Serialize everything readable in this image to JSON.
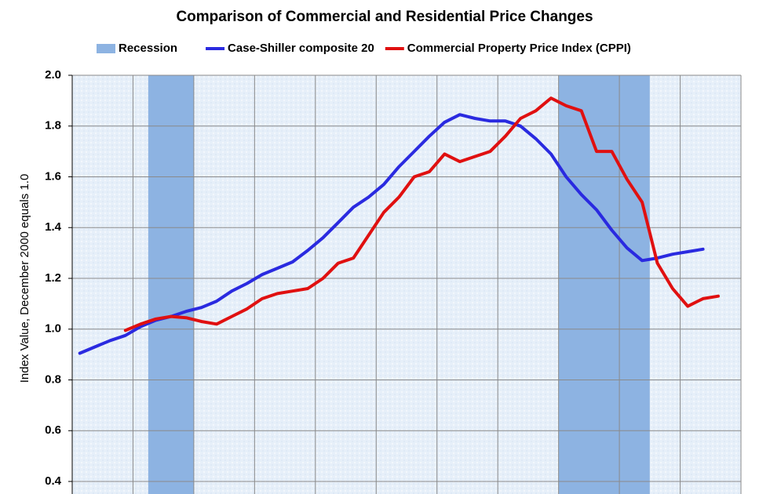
{
  "chart_data": {
    "type": "line",
    "title": "Comparison of Commercial and Residential Price Changes",
    "y_label": "Index Value, December 2000 equals 1.0",
    "categories": [
      null,
      null,
      null,
      null,
      null,
      null,
      null,
      null,
      null,
      null,
      null,
      null,
      null,
      null,
      null,
      null,
      null,
      null,
      null,
      null,
      null,
      null,
      null,
      null,
      null,
      null,
      null,
      null,
      null,
      null,
      null,
      null,
      null,
      null,
      null,
      null,
      null,
      null,
      null,
      null,
      null,
      null,
      null,
      null
    ],
    "recession": {
      "name": "Recession",
      "color": "#8db3e2",
      "periods": [
        [
          5,
          7
        ],
        [
          32,
          37
        ]
      ]
    },
    "series": [
      {
        "name": "Case-Shiller composite 20",
        "color": "#2a2ae0",
        "values": [
          0.905,
          0.93,
          0.955,
          0.975,
          1.01,
          1.035,
          1.05,
          1.07,
          1.085,
          1.11,
          1.15,
          1.18,
          1.215,
          1.24,
          1.265,
          1.31,
          1.36,
          1.42,
          1.48,
          1.52,
          1.57,
          1.64,
          1.7,
          1.76,
          1.815,
          1.845,
          1.83,
          1.82,
          1.82,
          1.8,
          1.75,
          1.69,
          1.6,
          1.53,
          1.47,
          1.39,
          1.32,
          1.27,
          1.28,
          1.295,
          1.305,
          1.315,
          null,
          null
        ]
      },
      {
        "name": "Commercial Property Price Index (CPPI)",
        "color": "#e01010",
        "values": [
          null,
          null,
          null,
          0.995,
          1.02,
          1.04,
          1.05,
          1.045,
          1.03,
          1.02,
          1.05,
          1.08,
          1.12,
          1.14,
          1.15,
          1.16,
          1.2,
          1.26,
          1.28,
          1.37,
          1.46,
          1.52,
          1.6,
          1.62,
          1.69,
          1.66,
          1.68,
          1.7,
          1.76,
          1.83,
          1.86,
          1.91,
          1.88,
          1.86,
          1.7,
          1.7,
          1.59,
          1.5,
          1.26,
          1.16,
          1.09,
          1.12,
          1.13,
          null
        ]
      }
    ],
    "ylim": [
      0.4,
      2.0
    ],
    "yticks": [
      0.4,
      0.6,
      0.8,
      {
        "value": 1,
        "label": "1.0"
      },
      1.2,
      1.4,
      1.6,
      1.8,
      {
        "value": 2,
        "label": "2.0"
      }
    ],
    "grid": true
  }
}
